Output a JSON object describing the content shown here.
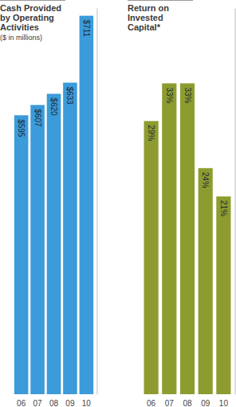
{
  "chart_data": [
    {
      "type": "bar",
      "title": "Cash Provided by Operating Activities",
      "subtitle": "($ in millions)",
      "categories": [
        "06",
        "07",
        "08",
        "09",
        "10"
      ],
      "values": [
        595,
        607,
        620,
        633,
        711
      ],
      "value_labels": [
        "$595",
        "$607",
        "$620",
        "$633",
        "$711"
      ],
      "color": "#3b9bdb",
      "ylim": [
        270,
        720
      ],
      "yticks": [],
      "data_labels": true,
      "tick_labels": "x",
      "grid": false
    },
    {
      "type": "bar",
      "title": "Return on Invested Capital*",
      "categories": [
        "06",
        "07",
        "08",
        "09",
        "10"
      ],
      "values": [
        29,
        33,
        33,
        24,
        21
      ],
      "value_labels": [
        "29%",
        "33%",
        "33%",
        "24%",
        "21%"
      ],
      "color": "#8e9c2f",
      "ylim": [
        0,
        41
      ],
      "yticks": [],
      "data_labels": true,
      "tick_labels": "x",
      "grid": false
    }
  ]
}
